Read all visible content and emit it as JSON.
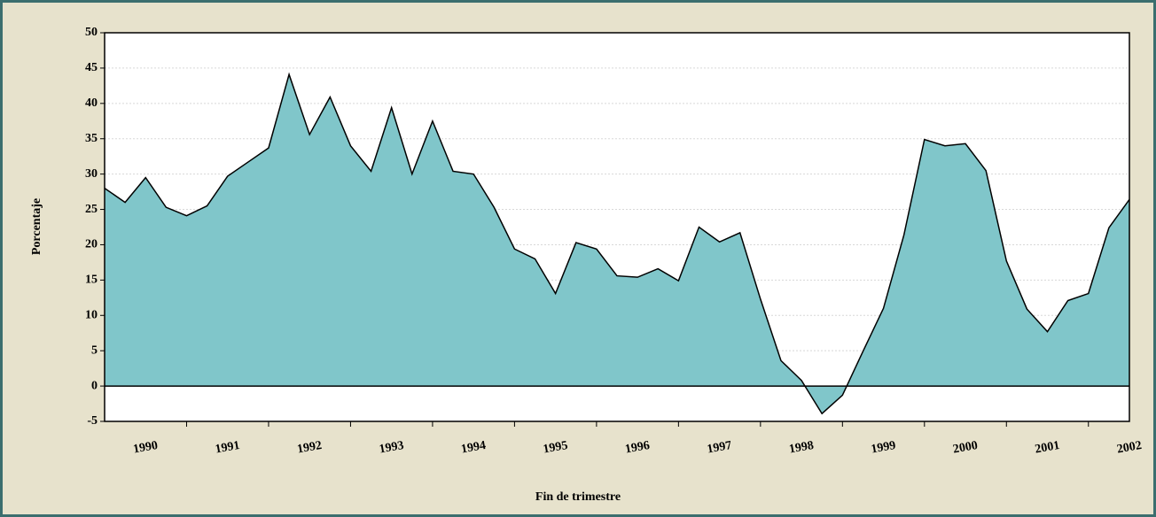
{
  "chart_data": {
    "type": "area",
    "x_label": "Fin de trimestre",
    "y_label": "Porcentaje",
    "categories": [
      null,
      null,
      "1990",
      null,
      null,
      null,
      "1991",
      null,
      null,
      null,
      "1992",
      null,
      null,
      null,
      "1993",
      null,
      null,
      null,
      "1994",
      null,
      null,
      null,
      "1995",
      null,
      null,
      null,
      "1996",
      null,
      null,
      null,
      "1997",
      null,
      null,
      null,
      "1998",
      null,
      null,
      null,
      "1999",
      null,
      null,
      null,
      "2000",
      null,
      null,
      null,
      "2001",
      null,
      null,
      null,
      "2002"
    ],
    "values": [
      28,
      26,
      29.5,
      25.3,
      24.1,
      25.5,
      29.7,
      31.7,
      33.7,
      44.1,
      35.6,
      40.9,
      34,
      30.4,
      39.4,
      30,
      37.5,
      30.4,
      30,
      25.3,
      19.4,
      18,
      13.1,
      20.3,
      19.4,
      15.6,
      15.4,
      16.6,
      14.9,
      22.5,
      20.4,
      21.7,
      12.3,
      3.6,
      0.8,
      -3.9,
      -1.3,
      4.9,
      11,
      21.4,
      34.9,
      34,
      34.3,
      30.5,
      17.7,
      10.9,
      7.7,
      12.1,
      13.1,
      22.4,
      26.4
    ],
    "color": "#80c6ca",
    "ylim": [
      -5,
      50
    ],
    "yticks": [
      -5,
      0,
      5,
      10,
      15,
      20,
      25,
      30,
      35,
      40,
      45,
      50
    ],
    "grid": true
  }
}
